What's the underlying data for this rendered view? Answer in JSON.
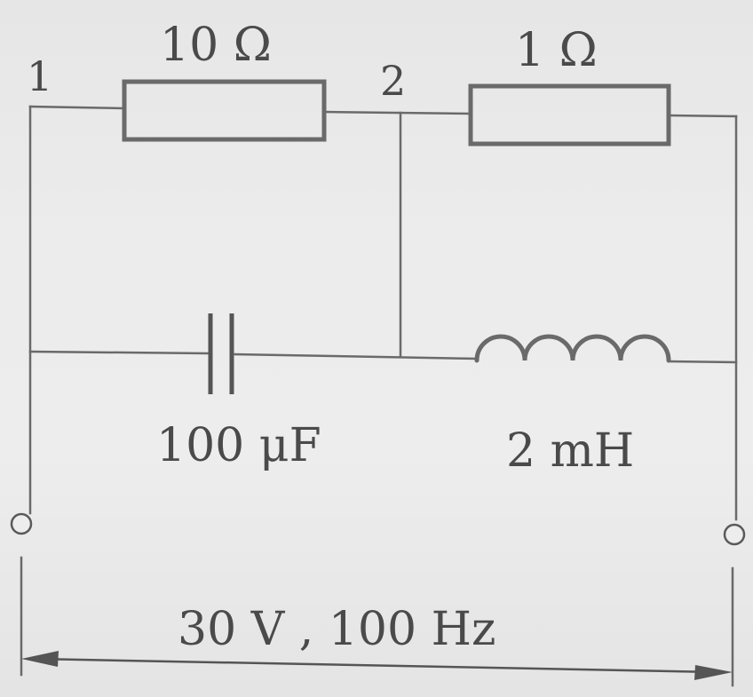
{
  "components": {
    "resistor_left": {
      "label": "10 Ω"
    },
    "resistor_right": {
      "label": "1 Ω"
    },
    "capacitor": {
      "label": "100 μF"
    },
    "inductor": {
      "label": "2 mH"
    }
  },
  "nodes": {
    "node_1": "1",
    "node_2": "2"
  },
  "source": {
    "label": "30 V , 100 Hz"
  },
  "colors": {
    "background": "#ececec",
    "line": "#6a6a6a",
    "text": "#4a4a4a"
  }
}
